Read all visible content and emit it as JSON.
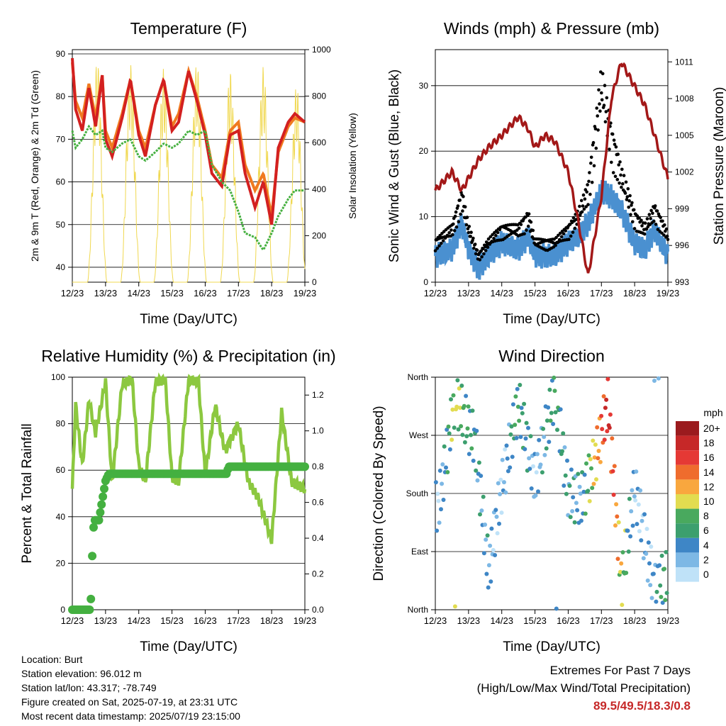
{
  "station": {
    "location": "Location: Burt",
    "elevation": "Station elevation: 96.012 m",
    "latlon": "Station lat/lon: 43.317; -78.749",
    "created": "Figure created on Sat, 2025-07-19, at 23:31 UTC",
    "latest": "Most recent data timestamp: 2025/07/19 23:15:00"
  },
  "extremes": {
    "title": "Extremes For Past 7 Days",
    "subtitle": "(High/Low/Max Wind/Total Precipitation)",
    "values": "89.5/49.5/18.3/0.8"
  },
  "days": [
    "12/23",
    "13/23",
    "14/23",
    "15/23",
    "16/23",
    "17/23",
    "18/23",
    "19/23"
  ],
  "colors": {
    "t2": "#d32020",
    "t9": "#f07a20",
    "td": "#46b040",
    "solar": "#f0d850",
    "wind": "#4a90d0",
    "gust": "#000000",
    "pressure": "#a31818",
    "rh": "#8cc840",
    "precip": "#44b040"
  },
  "chart_data": [
    {
      "id": "temperature",
      "type": "line",
      "title": "Temperature (F)",
      "xlabel": "Time (Day/UTC)",
      "ylabel": "2m & 9m T (Red, Orange) & 2m Td (Green)",
      "y2label": "Solar Insolation (Yellow)",
      "ylim": [
        36.5,
        91
      ],
      "yticks": [
        40,
        50,
        60,
        70,
        80,
        90
      ],
      "y2lim": [
        0,
        1000
      ],
      "y2ticks": [
        0,
        200,
        400,
        600,
        800,
        1000
      ],
      "x": [
        0,
        0.1,
        0.3,
        0.5,
        0.7,
        0.9,
        1.0,
        1.2,
        1.5,
        1.75,
        2.0,
        2.2,
        2.5,
        2.75,
        3.0,
        3.2,
        3.5,
        3.75,
        4.0,
        4.2,
        4.5,
        4.75,
        5.0,
        5.2,
        5.5,
        5.75,
        6.0,
        6.2,
        6.5,
        6.7,
        7.0
      ],
      "series": [
        {
          "name": "2m T",
          "values": [
            89,
            77,
            72,
            82,
            73,
            85,
            70,
            66,
            75,
            84,
            71,
            66,
            78,
            84,
            72,
            74,
            86,
            79,
            71,
            62,
            59,
            71,
            72,
            62,
            54,
            60,
            50,
            68,
            74,
            76,
            74
          ]
        },
        {
          "name": "9m T",
          "values": [
            88,
            79,
            75,
            83,
            75,
            85,
            72,
            68,
            76,
            84,
            72,
            68,
            78,
            84,
            73,
            76,
            86,
            80,
            72,
            64,
            61,
            72,
            74,
            64,
            58,
            62,
            52,
            67,
            73,
            75,
            74
          ]
        },
        {
          "name": "2m Td",
          "values": [
            72,
            68,
            70,
            73,
            71,
            72,
            68,
            67,
            69,
            70,
            66,
            65,
            67,
            69,
            68,
            69,
            72,
            71,
            72,
            64,
            60,
            58,
            53,
            48,
            47,
            44,
            48,
            52,
            56,
            58,
            58
          ]
        },
        {
          "name": "Solar Insolation",
          "days": [
            0.75,
            1.75,
            2.75,
            3.75,
            4.75,
            5.75,
            6.75
          ],
          "peaks": [
            960,
            940,
            920,
            950,
            910,
            930,
            850
          ]
        }
      ]
    },
    {
      "id": "winds",
      "type": "line",
      "title": "Winds (mph) & Pressure (mb)",
      "xlabel": "Time (Day/UTC)",
      "ylabel": "Sonic Wind & Gust (Blue, Black)",
      "y2label": "Station Pressure (Maroon)",
      "ylim": [
        0,
        35.5
      ],
      "yticks": [
        0,
        10,
        20,
        30
      ],
      "y2lim": [
        993,
        1012
      ],
      "y2ticks": [
        993,
        996,
        999,
        1002,
        1005,
        1008,
        1011
      ],
      "x": [
        0,
        0.5,
        0.8,
        1.0,
        1.3,
        1.6,
        2.0,
        2.5,
        2.8,
        3.0,
        3.3,
        3.6,
        4.0,
        4.3,
        4.6,
        5.0,
        5.3,
        5.6,
        6.0,
        6.3,
        6.6,
        7.0
      ],
      "series": [
        {
          "name": "Sonic Wind",
          "values": [
            4,
            5,
            9,
            5,
            2,
            4,
            6,
            5,
            7,
            4,
            4,
            4,
            6,
            7,
            9,
            14,
            13,
            11,
            6,
            5,
            8,
            4
          ]
        },
        {
          "name": "Gust",
          "values": [
            6,
            8,
            13,
            8,
            4,
            6,
            8,
            8,
            10,
            6,
            6,
            6,
            8,
            10,
            14,
            30,
            22,
            16,
            10,
            8,
            11,
            7
          ]
        },
        {
          "name": "Station Pressure",
          "values": [
            1000.5,
            1002,
            1000.5,
            1001.5,
            1003,
            1004,
            1005,
            1006.5,
            1005.5,
            1004,
            1005,
            1004.5,
            1002,
            998,
            993.5,
            1000,
            1008,
            1011,
            1009,
            1007.5,
            1005,
            1001.5
          ]
        }
      ]
    },
    {
      "id": "humidity",
      "type": "line",
      "title": "Relative Humidity (%) & Precipitation (in)",
      "xlabel": "Time (Day/UTC)",
      "ylabel": "Percent & Total Rainfall",
      "ylim": [
        0,
        100
      ],
      "yticks": [
        0,
        20,
        40,
        60,
        80,
        100
      ],
      "y2lim": [
        0,
        1.3
      ],
      "y2ticks": [
        0.0,
        0.2,
        0.4,
        0.6,
        0.8,
        1.0,
        1.2
      ],
      "x": [
        0,
        0.1,
        0.3,
        0.5,
        0.7,
        1.0,
        1.2,
        1.5,
        1.8,
        2.0,
        2.2,
        2.5,
        2.8,
        3.0,
        3.2,
        3.5,
        3.8,
        4.0,
        4.3,
        4.6,
        5.0,
        5.3,
        5.6,
        6.0,
        6.3,
        6.6,
        7.0
      ],
      "series": [
        {
          "name": "Relative Humidity",
          "values": [
            52,
            88,
            62,
            90,
            76,
            98,
            55,
            97,
            99,
            62,
            55,
            98,
            99,
            57,
            55,
            99,
            98,
            58,
            88,
            68,
            80,
            55,
            48,
            30,
            85,
            55,
            52
          ]
        },
        {
          "name": "Total Precipitation",
          "x": [
            0,
            0.55,
            0.6,
            0.65,
            0.7,
            0.8,
            1.0,
            1.1,
            1.5,
            2.0,
            3.0,
            4.0,
            4.65,
            4.7,
            5.0,
            6.0,
            7.0
          ],
          "values": [
            0.0,
            0.0,
            0.3,
            0.5,
            0.5,
            0.5,
            0.72,
            0.76,
            0.76,
            0.76,
            0.76,
            0.76,
            0.76,
            0.8,
            0.8,
            0.8,
            0.8
          ]
        }
      ]
    },
    {
      "id": "wind-direction",
      "type": "scatter",
      "title": "Wind Direction",
      "xlabel": "Time (Day/UTC)",
      "ylabel": "Direction (Colored By Speed)",
      "yticks": [
        "North",
        "East",
        "South",
        "West",
        "North"
      ],
      "ylim": [
        0,
        360
      ],
      "x": [
        0.1,
        0.6,
        1.2,
        1.6,
        2.0,
        2.5,
        3.0,
        3.6,
        4.0,
        4.4,
        4.8,
        5.2,
        5.6,
        6.0,
        6.6,
        6.9
      ],
      "values": [
        160,
        330,
        260,
        60,
        190,
        320,
        200,
        340,
        180,
        170,
        230,
        320,
        40,
        190,
        30,
        50
      ],
      "speeds": [
        3,
        10,
        6,
        4,
        2,
        8,
        3,
        7,
        5,
        5,
        12,
        18,
        11,
        3,
        4,
        8
      ],
      "legend_title": "mph",
      "legend_labels": [
        "20+",
        "18",
        "16",
        "14",
        "12",
        "10",
        "8",
        "6",
        "4",
        "2",
        "0"
      ],
      "legend_colors": [
        "#9b1b1e",
        "#c62828",
        "#e53935",
        "#ef6c2d",
        "#f9a73e",
        "#e2dc50",
        "#49a95e",
        "#3c9f6e",
        "#3e86c6",
        "#7db8e5",
        "#bfe2f8"
      ]
    }
  ]
}
